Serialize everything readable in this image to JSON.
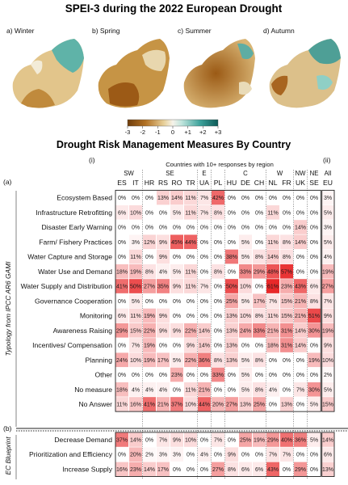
{
  "page_title": "SPEI-3 during the 2022 European Drought",
  "maps": {
    "panels": [
      {
        "label": "a) Winter"
      },
      {
        "label": "b) Spring"
      },
      {
        "label": "c) Summer"
      },
      {
        "label": "d) Autumn"
      }
    ],
    "colorbar_ticks": [
      "-3",
      "-2",
      "-1",
      "0",
      "+1",
      "+2",
      "+3"
    ],
    "colors": {
      "dry": "#a8661c",
      "mid": "#f2ecdc",
      "wet": "#1f8b85"
    }
  },
  "chart_data": {
    "type": "heatmap",
    "title": "Drought Risk Management Measures By Country",
    "x_caption": "Countries with 10+ responses by region",
    "panel_i_label": "(i)",
    "panel_ii_label": "(ii)",
    "panel_a_label": "(a)",
    "panel_b_label": "(b)",
    "ylabel_a": "Typology from IPCC AR6 GAMI",
    "ylabel_b": "EC Blueprint",
    "regions": [
      {
        "name": "SW",
        "countries": [
          "ES",
          "IT"
        ]
      },
      {
        "name": "SE",
        "countries": [
          "HR",
          "RS",
          "RO",
          "TR"
        ]
      },
      {
        "name": "E",
        "countries": [
          "UA"
        ]
      },
      {
        "name": "",
        "countries": [
          "PL"
        ]
      },
      {
        "name": "C",
        "countries": [
          "HU",
          "DE",
          "CH"
        ]
      },
      {
        "name": "W",
        "countries": [
          "NL",
          "FR"
        ]
      },
      {
        "name": "NW",
        "countries": [
          "UK"
        ]
      },
      {
        "name": "NE",
        "countries": [
          "SE"
        ]
      },
      {
        "name": "All",
        "countries": [
          "EU"
        ]
      }
    ],
    "countries": [
      "ES",
      "IT",
      "HR",
      "RS",
      "RO",
      "TR",
      "UA",
      "PL",
      "HU",
      "DE",
      "CH",
      "NL",
      "FR",
      "UK",
      "SE",
      "EU"
    ],
    "rows_a": [
      {
        "label": "Ecosystem Based",
        "values": [
          0,
          0,
          0,
          13,
          14,
          11,
          7,
          42,
          0,
          0,
          0,
          0,
          0,
          0,
          0,
          3
        ]
      },
      {
        "label": "Infrastructure Retrofitting",
        "values": [
          6,
          10,
          0,
          0,
          5,
          11,
          7,
          8,
          0,
          0,
          0,
          11,
          0,
          0,
          0,
          5
        ]
      },
      {
        "label": "Disaster Early Warning",
        "values": [
          0,
          0,
          0,
          0,
          0,
          0,
          0,
          0,
          0,
          0,
          0,
          0,
          0,
          14,
          0,
          3
        ]
      },
      {
        "label": "Farm/ Fishery Practices",
        "values": [
          0,
          3,
          12,
          9,
          45,
          44,
          0,
          0,
          0,
          5,
          0,
          11,
          8,
          14,
          0,
          5
        ]
      },
      {
        "label": "Water Capture and Storage",
        "values": [
          0,
          11,
          0,
          9,
          0,
          0,
          0,
          0,
          38,
          5,
          8,
          14,
          8,
          0,
          0,
          4
        ]
      },
      {
        "label": "Water Use and Demand",
        "values": [
          18,
          19,
          8,
          4,
          5,
          11,
          0,
          8,
          0,
          33,
          29,
          48,
          57,
          0,
          0,
          19
        ]
      },
      {
        "label": "Water Supply and Distribution",
        "values": [
          41,
          50,
          27,
          35,
          9,
          11,
          7,
          0,
          50,
          10,
          0,
          61,
          23,
          43,
          6,
          27
        ]
      },
      {
        "label": "Governance Cooperation",
        "values": [
          0,
          5,
          0,
          0,
          0,
          0,
          0,
          0,
          25,
          5,
          17,
          7,
          15,
          21,
          8,
          7
        ]
      },
      {
        "label": "Monitoring",
        "values": [
          6,
          11,
          19,
          9,
          0,
          0,
          0,
          0,
          13,
          10,
          8,
          11,
          15,
          21,
          51,
          9
        ]
      },
      {
        "label": "Awareness Raising",
        "values": [
          29,
          15,
          22,
          9,
          9,
          22,
          14,
          0,
          13,
          24,
          33,
          21,
          31,
          14,
          30,
          19
        ]
      },
      {
        "label": "Incentives/ Compensation",
        "values": [
          0,
          7,
          19,
          0,
          0,
          9,
          14,
          0,
          13,
          0,
          0,
          18,
          31,
          14,
          0,
          9
        ]
      },
      {
        "label": "Planning",
        "values": [
          24,
          10,
          19,
          17,
          5,
          22,
          36,
          8,
          13,
          5,
          8,
          0,
          0,
          0,
          19,
          10
        ]
      },
      {
        "label": "Other",
        "values": [
          0,
          0,
          0,
          0,
          23,
          0,
          0,
          33,
          0,
          5,
          0,
          0,
          0,
          0,
          0,
          2
        ]
      },
      {
        "label": "No measure",
        "values": [
          18,
          4,
          4,
          4,
          0,
          11,
          21,
          0,
          0,
          5,
          8,
          4,
          0,
          7,
          30,
          5
        ]
      },
      {
        "label": "No Answer",
        "values": [
          11,
          16,
          41,
          21,
          37,
          10,
          44,
          20,
          27,
          13,
          25,
          0,
          13,
          0,
          5,
          15
        ]
      }
    ],
    "rows_b": [
      {
        "label": "Decrease Demand",
        "values": [
          37,
          14,
          0,
          7,
          9,
          10,
          0,
          7,
          0,
          25,
          19,
          29,
          40,
          36,
          5,
          14
        ]
      },
      {
        "label": "Prioritization and Efficiency",
        "values": [
          0,
          20,
          2,
          3,
          3,
          0,
          4,
          0,
          9,
          0,
          0,
          7,
          7,
          0,
          0,
          6
        ]
      },
      {
        "label": "Increase Supply",
        "values": [
          16,
          23,
          14,
          17,
          0,
          0,
          0,
          27,
          8,
          6,
          6,
          43,
          0,
          29,
          0,
          13
        ]
      }
    ],
    "value_suffix": "%",
    "color_low": "#ffffff",
    "color_high": "#e8292a",
    "value_range": [
      0,
      60
    ]
  }
}
